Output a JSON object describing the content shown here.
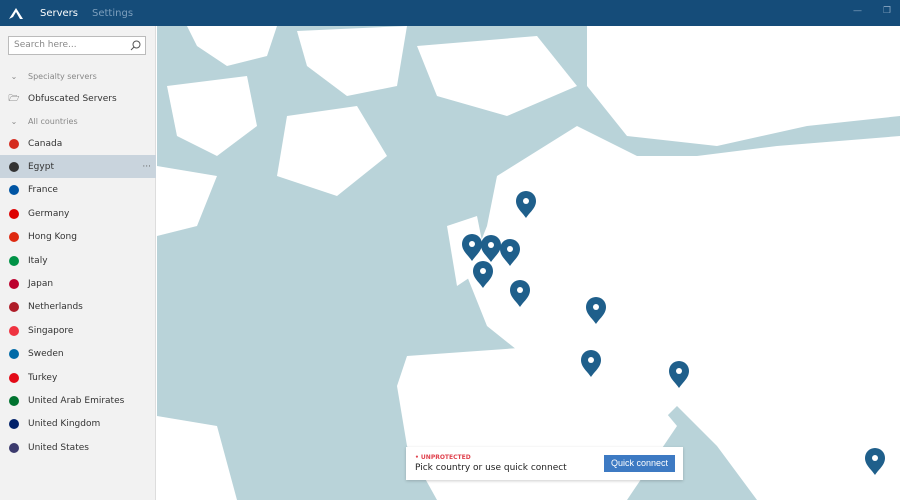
{
  "header": {
    "tabs": [
      {
        "label": "Servers"
      },
      {
        "label": "Settings"
      }
    ],
    "minimize": "—",
    "restore": "❐"
  },
  "sidebar": {
    "search_placeholder": "Search here...",
    "specialty_header": "Specialty servers",
    "obfuscated": "Obfuscated Servers",
    "countries_header": "All countries",
    "countries": [
      {
        "label": "Canada",
        "color": "#d52b1e"
      },
      {
        "label": "Egypt",
        "color": "#333"
      },
      {
        "label": "France",
        "color": "#0055a4"
      },
      {
        "label": "Germany",
        "color": "#dd0000"
      },
      {
        "label": "Hong Kong",
        "color": "#de2910"
      },
      {
        "label": "Italy",
        "color": "#009246"
      },
      {
        "label": "Japan",
        "color": "#bc002d"
      },
      {
        "label": "Netherlands",
        "color": "#ae1c28"
      },
      {
        "label": "Singapore",
        "color": "#ef3340"
      },
      {
        "label": "Sweden",
        "color": "#006aa7"
      },
      {
        "label": "Turkey",
        "color": "#e30a17"
      },
      {
        "label": "United Arab Emirates",
        "color": "#00732f"
      },
      {
        "label": "United Kingdom",
        "color": "#012169"
      },
      {
        "label": "United States",
        "color": "#3c3b6e"
      }
    ],
    "selected": "Egypt",
    "more": "···"
  },
  "status": {
    "label": "• UNPROTECTED",
    "message": "Pick country or use quick connect",
    "button": "Quick connect",
    "color": "#e0434f"
  },
  "colors": {
    "header": "#154c79",
    "water": "#b9d3d9",
    "land": "#ffffff",
    "pin": "#1f5f8b",
    "accent": "#3d7ac3"
  }
}
